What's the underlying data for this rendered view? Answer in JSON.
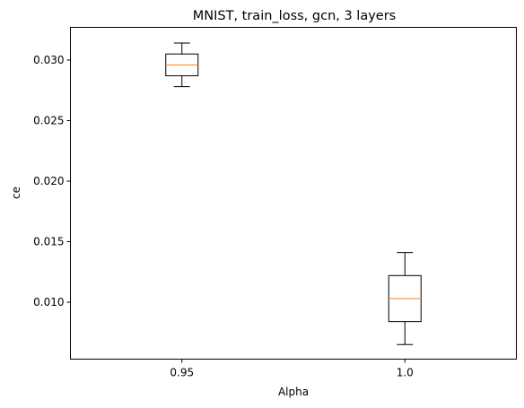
{
  "chart_data": {
    "type": "box",
    "title": "MNIST, train_loss, gcn, 3 layers",
    "xlabel": "Alpha",
    "ylabel": "ce",
    "categories": [
      "0.95",
      "1.0"
    ],
    "boxes": [
      {
        "category": "0.95",
        "whisker_low": 0.0278,
        "q1": 0.0287,
        "median": 0.0296,
        "q3": 0.0305,
        "whisker_high": 0.0314
      },
      {
        "category": "1.0",
        "whisker_low": 0.0065,
        "q1": 0.0084,
        "median": 0.0103,
        "q3": 0.0122,
        "whisker_high": 0.0141
      }
    ],
    "yticks": [
      "0.010",
      "0.015",
      "0.020",
      "0.025",
      "0.030"
    ],
    "ylim": [
      0.0053,
      0.0327
    ],
    "grid": false,
    "colors": {
      "box": "#000000",
      "median": "#ff7f0e"
    }
  }
}
